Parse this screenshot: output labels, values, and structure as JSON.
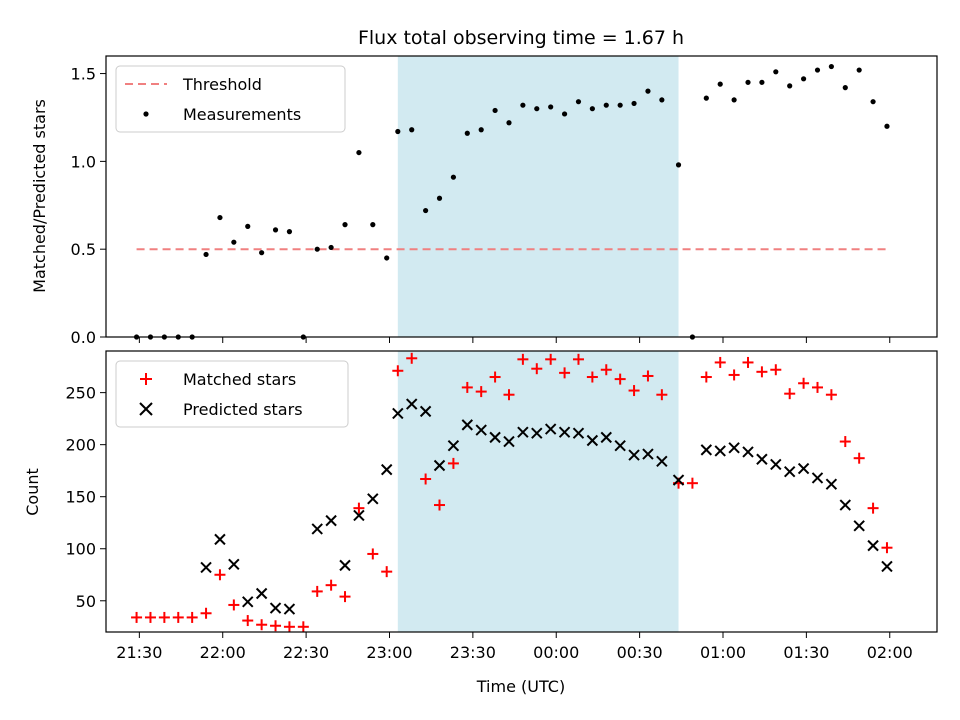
{
  "title": "Flux total observing time = 1.67 h",
  "colors": {
    "threshold": "#f08080",
    "measurement": "#000000",
    "matched": "#ff0000",
    "predicted": "#000000",
    "span": "#add8e6"
  },
  "chart_data": [
    {
      "type": "scatter",
      "title": "Flux total observing time = 1.67 h",
      "xlabel": "",
      "ylabel": "Matched/Predicted stars",
      "ylim": [
        0,
        1.6
      ],
      "yticks": [
        "0.0",
        "0.5",
        "1.0",
        "1.5"
      ],
      "xticks": [
        "21:30",
        "22:00",
        "22:30",
        "23:00",
        "23:30",
        "00:00",
        "00:30",
        "01:00",
        "01:30",
        "02:00"
      ],
      "shaded_span": [
        "23:03",
        "00:44"
      ],
      "legend": {
        "placement": "top-left",
        "entries": [
          "Threshold",
          "Measurements"
        ]
      },
      "series": [
        {
          "name": "Threshold",
          "style": "dashed-line",
          "x": [
            "21:29",
            "02:00"
          ],
          "values": [
            0.5,
            0.5
          ]
        },
        {
          "name": "Measurements",
          "style": "dot",
          "x": [
            "21:29",
            "21:34",
            "21:39",
            "21:44",
            "21:49",
            "21:54",
            "21:59",
            "22:04",
            "22:09",
            "22:14",
            "22:19",
            "22:24",
            "22:29",
            "22:34",
            "22:39",
            "22:44",
            "22:49",
            "22:54",
            "22:59",
            "23:03",
            "23:08",
            "23:13",
            "23:18",
            "23:23",
            "23:28",
            "23:33",
            "23:38",
            "23:43",
            "23:48",
            "23:53",
            "23:58",
            "00:03",
            "00:08",
            "00:13",
            "00:18",
            "00:23",
            "00:28",
            "00:33",
            "00:38",
            "00:44",
            "00:49",
            "00:54",
            "00:59",
            "01:04",
            "01:09",
            "01:14",
            "01:19",
            "01:24",
            "01:29",
            "01:34",
            "01:39",
            "01:44",
            "01:49",
            "01:54",
            "01:59"
          ],
          "values": [
            0.0,
            0.0,
            0.0,
            0.0,
            0.0,
            0.47,
            0.68,
            0.54,
            0.63,
            0.48,
            0.61,
            0.6,
            0.0,
            0.5,
            0.51,
            0.64,
            1.05,
            0.64,
            0.45,
            1.17,
            1.18,
            0.72,
            0.79,
            0.91,
            1.16,
            1.18,
            1.29,
            1.22,
            1.32,
            1.3,
            1.31,
            1.27,
            1.34,
            1.3,
            1.32,
            1.32,
            1.33,
            1.4,
            1.35,
            0.98,
            0.0,
            1.36,
            1.44,
            1.35,
            1.45,
            1.45,
            1.51,
            1.43,
            1.47,
            1.52,
            1.54,
            1.42,
            1.52,
            1.34,
            1.2
          ]
        }
      ]
    },
    {
      "type": "scatter",
      "xlabel": "Time (UTC)",
      "ylabel": "Count",
      "ylim": [
        20,
        290
      ],
      "yticks": [
        "50",
        "100",
        "150",
        "200",
        "250"
      ],
      "xticks": [
        "21:30",
        "22:00",
        "22:30",
        "23:00",
        "23:30",
        "00:00",
        "00:30",
        "01:00",
        "01:30",
        "02:00"
      ],
      "shaded_span": [
        "23:03",
        "00:44"
      ],
      "legend": {
        "placement": "top-left",
        "entries": [
          "Matched stars",
          "Predicted stars"
        ]
      },
      "series": [
        {
          "name": "Matched stars",
          "marker": "plus",
          "x": [
            "21:29",
            "21:34",
            "21:39",
            "21:44",
            "21:49",
            "21:54",
            "21:59",
            "22:04",
            "22:09",
            "22:14",
            "22:19",
            "22:24",
            "22:29",
            "22:34",
            "22:39",
            "22:44",
            "22:49",
            "22:54",
            "22:59",
            "23:03",
            "23:08",
            "23:13",
            "23:18",
            "23:23",
            "23:28",
            "23:33",
            "23:38",
            "23:43",
            "23:48",
            "23:53",
            "23:58",
            "00:03",
            "00:08",
            "00:13",
            "00:18",
            "00:23",
            "00:28",
            "00:33",
            "00:38",
            "00:44",
            "00:49",
            "00:54",
            "00:59",
            "01:04",
            "01:09",
            "01:14",
            "01:19",
            "01:24",
            "01:29",
            "01:34",
            "01:39",
            "01:44",
            "01:49",
            "01:54",
            "01:59"
          ],
          "values": [
            34,
            34,
            34,
            34,
            34,
            38,
            75,
            46,
            31,
            27,
            26,
            25,
            25,
            59,
            65,
            54,
            139,
            95,
            78,
            271,
            283,
            167,
            142,
            182,
            255,
            251,
            265,
            248,
            282,
            273,
            282,
            269,
            282,
            265,
            272,
            263,
            252,
            266,
            248,
            163,
            163,
            265,
            279,
            267,
            279,
            270,
            272,
            249,
            259,
            255,
            248,
            203,
            187,
            139,
            101
          ]
        },
        {
          "name": "Predicted stars",
          "marker": "x",
          "x": [
            "21:54",
            "21:59",
            "22:04",
            "22:09",
            "22:14",
            "22:19",
            "22:24",
            "22:34",
            "22:39",
            "22:44",
            "22:49",
            "22:54",
            "22:59",
            "23:03",
            "23:08",
            "23:13",
            "23:18",
            "23:23",
            "23:28",
            "23:33",
            "23:38",
            "23:43",
            "23:48",
            "23:53",
            "23:58",
            "00:03",
            "00:08",
            "00:13",
            "00:18",
            "00:23",
            "00:28",
            "00:33",
            "00:38",
            "00:44",
            "00:54",
            "00:59",
            "01:04",
            "01:09",
            "01:14",
            "01:19",
            "01:24",
            "01:29",
            "01:34",
            "01:39",
            "01:44",
            "01:49",
            "01:54",
            "01:59"
          ],
          "values": [
            82,
            109,
            85,
            49,
            57,
            43,
            42,
            119,
            127,
            84,
            132,
            148,
            176,
            230,
            239,
            232,
            180,
            199,
            219,
            214,
            207,
            203,
            212,
            211,
            215,
            212,
            211,
            204,
            207,
            199,
            190,
            191,
            184,
            166,
            195,
            194,
            197,
            193,
            186,
            181,
            174,
            177,
            168,
            162,
            142,
            122,
            103,
            83
          ]
        }
      ]
    }
  ]
}
